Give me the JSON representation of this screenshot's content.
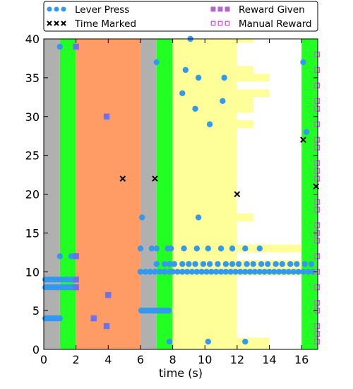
{
  "chart_data": {
    "type": "scatter",
    "xlabel": "time (s)",
    "ylabel": "",
    "xlim": [
      0,
      17
    ],
    "ylim": [
      0,
      40
    ],
    "x_ticks": [
      0,
      2,
      4,
      6,
      8,
      10,
      12,
      14,
      16
    ],
    "y_ticks": [
      0,
      5,
      10,
      15,
      20,
      25,
      30,
      35,
      40
    ],
    "grid": false,
    "legend_placement": "top",
    "colors": {
      "gray": "#b0b0b0",
      "green": "#22ff22",
      "orange": "#ff9c66",
      "yellow": "#ffff99",
      "lever": "#3399ee",
      "reward": "#7070ee",
      "reward_legend": "#b366cc",
      "manual": "#cc66dd",
      "time_marked": "#000000"
    },
    "background_bands": [
      {
        "x0": 0,
        "x1": 1,
        "color": "gray"
      },
      {
        "x0": 1,
        "x1": 2,
        "color": "green"
      },
      {
        "x0": 2,
        "x1": 6,
        "color": "orange"
      },
      {
        "x0": 6,
        "x1": 7,
        "color": "gray"
      },
      {
        "x0": 7,
        "x1": 8,
        "color": "green"
      },
      {
        "x0": 8,
        "x1": 12,
        "color": "yellow"
      },
      {
        "x0": 16,
        "x1": 17,
        "color": "green"
      }
    ],
    "row_bands": [
      {
        "y": 40,
        "x0": 12,
        "x1": 13
      },
      {
        "y": 36,
        "x0": 12,
        "x1": 13
      },
      {
        "y": 35,
        "x0": 12,
        "x1": 14
      },
      {
        "y": 33,
        "x0": 12,
        "x1": 14
      },
      {
        "y": 32,
        "x0": 12,
        "x1": 13
      },
      {
        "y": 31,
        "x0": 12,
        "x1": 13
      },
      {
        "y": 29,
        "x0": 12,
        "x1": 13
      },
      {
        "y": 17,
        "x0": 12,
        "x1": 13
      },
      {
        "y": 13,
        "x0": 12,
        "x1": 16
      },
      {
        "y": 11,
        "x0": 12,
        "x1": 16
      },
      {
        "y": 10,
        "x0": 12,
        "x1": 16
      },
      {
        "y": 1,
        "x0": 12,
        "x1": 14
      },
      {
        "y": 0,
        "x0": 12,
        "x1": 14
      }
    ],
    "series": [
      {
        "name": "Lever Press",
        "marker": "circle",
        "color": "lever",
        "points": [
          [
            1.0,
            39
          ],
          [
            9.1,
            40
          ],
          [
            7.0,
            37
          ],
          [
            8.8,
            36
          ],
          [
            9.6,
            35
          ],
          [
            11.2,
            35
          ],
          [
            8.6,
            33
          ],
          [
            11.1,
            32
          ],
          [
            9.4,
            31
          ],
          [
            10.3,
            29
          ],
          [
            16.1,
            37
          ],
          [
            16.3,
            28
          ],
          [
            6.1,
            17
          ],
          [
            9.6,
            17
          ],
          [
            0.1,
            4
          ],
          [
            0.2,
            4
          ],
          [
            0.3,
            4
          ],
          [
            0.4,
            4
          ],
          [
            0.5,
            4
          ],
          [
            0.6,
            4
          ],
          [
            0.7,
            4
          ],
          [
            0.8,
            4
          ],
          [
            0.9,
            4
          ],
          [
            1.0,
            4
          ],
          [
            0.1,
            8
          ],
          [
            0.25,
            8
          ],
          [
            0.4,
            8
          ],
          [
            0.55,
            8
          ],
          [
            0.7,
            8
          ],
          [
            0.85,
            8
          ],
          [
            1.0,
            8
          ],
          [
            1.15,
            8
          ],
          [
            1.3,
            8
          ],
          [
            1.45,
            8
          ],
          [
            1.6,
            8
          ],
          [
            1.75,
            8
          ],
          [
            1.9,
            8
          ],
          [
            2.0,
            8
          ],
          [
            0.1,
            9
          ],
          [
            0.3,
            9
          ],
          [
            0.5,
            9
          ],
          [
            0.7,
            9
          ],
          [
            0.9,
            9
          ],
          [
            1.1,
            9
          ],
          [
            1.3,
            9
          ],
          [
            1.5,
            9
          ],
          [
            1.7,
            9
          ],
          [
            1.9,
            9
          ],
          [
            1.0,
            12
          ],
          [
            1.7,
            12
          ],
          [
            1.9,
            12
          ],
          [
            6.05,
            5
          ],
          [
            6.15,
            5
          ],
          [
            6.25,
            5
          ],
          [
            6.35,
            5
          ],
          [
            6.45,
            5
          ],
          [
            6.55,
            5
          ],
          [
            6.65,
            5
          ],
          [
            6.75,
            5
          ],
          [
            6.85,
            5
          ],
          [
            6.95,
            5
          ],
          [
            7.05,
            5
          ],
          [
            7.15,
            5
          ],
          [
            7.25,
            5
          ],
          [
            7.35,
            5
          ],
          [
            7.45,
            5
          ],
          [
            7.55,
            5
          ],
          [
            7.65,
            5
          ],
          [
            7.75,
            5
          ],
          [
            6.0,
            10
          ],
          [
            6.3,
            10
          ],
          [
            6.6,
            10
          ],
          [
            6.9,
            10
          ],
          [
            7.2,
            10
          ],
          [
            7.5,
            10
          ],
          [
            7.8,
            10
          ],
          [
            8.0,
            10
          ],
          [
            8.3,
            10
          ],
          [
            8.6,
            10
          ],
          [
            8.9,
            10
          ],
          [
            9.2,
            10
          ],
          [
            9.5,
            10
          ],
          [
            9.8,
            10
          ],
          [
            10.1,
            10
          ],
          [
            10.4,
            10
          ],
          [
            10.7,
            10
          ],
          [
            11.0,
            10
          ],
          [
            11.3,
            10
          ],
          [
            11.6,
            10
          ],
          [
            11.9,
            10
          ],
          [
            12.2,
            10
          ],
          [
            12.5,
            10
          ],
          [
            12.8,
            10
          ],
          [
            13.1,
            10
          ],
          [
            13.4,
            10
          ],
          [
            13.7,
            10
          ],
          [
            14.0,
            10
          ],
          [
            14.3,
            10
          ],
          [
            14.6,
            10
          ],
          [
            14.9,
            10
          ],
          [
            15.2,
            10
          ],
          [
            15.5,
            10
          ],
          [
            15.8,
            10
          ],
          [
            16.1,
            10
          ],
          [
            16.4,
            10
          ],
          [
            16.7,
            10
          ],
          [
            7.0,
            11
          ],
          [
            7.5,
            11
          ],
          [
            7.8,
            11
          ],
          [
            8.1,
            11
          ],
          [
            8.6,
            11
          ],
          [
            9.0,
            11
          ],
          [
            9.4,
            11
          ],
          [
            9.9,
            11
          ],
          [
            10.3,
            11
          ],
          [
            10.8,
            11
          ],
          [
            11.3,
            11
          ],
          [
            11.7,
            11
          ],
          [
            12.1,
            11
          ],
          [
            12.6,
            11
          ],
          [
            13.0,
            11
          ],
          [
            13.5,
            11
          ],
          [
            13.9,
            11
          ],
          [
            14.4,
            11
          ],
          [
            14.8,
            11
          ],
          [
            15.3,
            11
          ],
          [
            15.7,
            11
          ],
          [
            16.2,
            11
          ],
          [
            16.6,
            11
          ],
          [
            6.0,
            13
          ],
          [
            6.7,
            13
          ],
          [
            7.0,
            13
          ],
          [
            7.7,
            13
          ],
          [
            7.9,
            13
          ],
          [
            8.7,
            13
          ],
          [
            9.5,
            13
          ],
          [
            10.2,
            13
          ],
          [
            11.0,
            13
          ],
          [
            11.7,
            13
          ],
          [
            12.5,
            13
          ],
          [
            13.4,
            13
          ],
          [
            7.8,
            1
          ],
          [
            10.2,
            1
          ],
          [
            12.5,
            1
          ]
        ]
      },
      {
        "name": "Time Marked",
        "marker": "x",
        "color": "time_marked",
        "points": [
          [
            4.9,
            22
          ],
          [
            6.9,
            22
          ],
          [
            12.0,
            20
          ],
          [
            16.1,
            27
          ],
          [
            16.9,
            21
          ]
        ]
      },
      {
        "name": "Reward Given",
        "marker": "square",
        "color": "reward",
        "legend_color": "reward_legend",
        "points": [
          [
            2.0,
            39
          ],
          [
            3.9,
            30
          ],
          [
            2.0,
            12
          ],
          [
            2.0,
            9
          ],
          [
            2.0,
            8
          ],
          [
            4.0,
            7
          ],
          [
            3.1,
            4
          ],
          [
            3.9,
            3
          ]
        ]
      },
      {
        "name": "Manual Reward",
        "marker": "square-open",
        "color": "manual",
        "points": [
          [
            16.95,
            38
          ],
          [
            16.95,
            36
          ],
          [
            16.95,
            34
          ],
          [
            16.95,
            32
          ],
          [
            16.95,
            31
          ],
          [
            16.95,
            29
          ],
          [
            16.95,
            27
          ],
          [
            16.95,
            26
          ],
          [
            16.95,
            24
          ],
          [
            16.95,
            23
          ],
          [
            16.95,
            22
          ],
          [
            16.95,
            19
          ],
          [
            16.95,
            18
          ],
          [
            16.95,
            16
          ],
          [
            16.95,
            15
          ],
          [
            16.95,
            14
          ],
          [
            16.95,
            12
          ],
          [
            16.95,
            10
          ],
          [
            16.95,
            8
          ],
          [
            16.95,
            6
          ],
          [
            16.95,
            5
          ],
          [
            16.95,
            3
          ],
          [
            16.95,
            2
          ],
          [
            16.95,
            1
          ]
        ]
      }
    ]
  }
}
